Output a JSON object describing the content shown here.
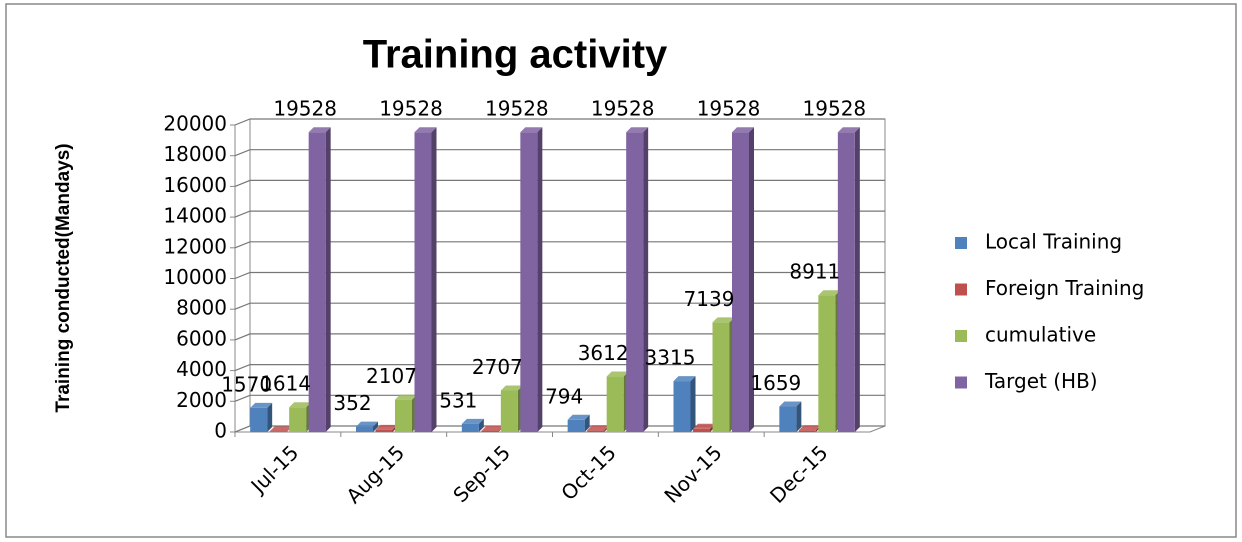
{
  "chart_data": {
    "type": "bar3d",
    "title": "Training activity",
    "ylabel": "Training conducted(Mandays)",
    "categories": [
      "Jul-15",
      "Aug-15",
      "Sep-15",
      "Oct-15",
      "Nov-15",
      "Dec-15"
    ],
    "series": [
      {
        "name": "Local Training",
        "color": "#4f81bd",
        "values": [
          1570,
          352,
          531,
          794,
          3315,
          1659
        ],
        "data_labels": true
      },
      {
        "name": "Foreign Training",
        "color": "#c0504d",
        "values": [
          44,
          141,
          69,
          111,
          212,
          113
        ],
        "data_labels": false
      },
      {
        "name": "cumulative",
        "color": "#9bbb59",
        "values": [
          1614,
          2107,
          2707,
          3612,
          7139,
          8911
        ],
        "data_labels": true
      },
      {
        "name": "Target (HB)",
        "color": "#8064a2",
        "values": [
          19528,
          19528,
          19528,
          19528,
          19528,
          19528
        ],
        "data_labels": true
      }
    ],
    "ylim": [
      0,
      20000
    ],
    "yticks": [
      0,
      2000,
      4000,
      6000,
      8000,
      10000,
      12000,
      14000,
      16000,
      18000,
      20000
    ],
    "grid": true,
    "legend": "right"
  }
}
